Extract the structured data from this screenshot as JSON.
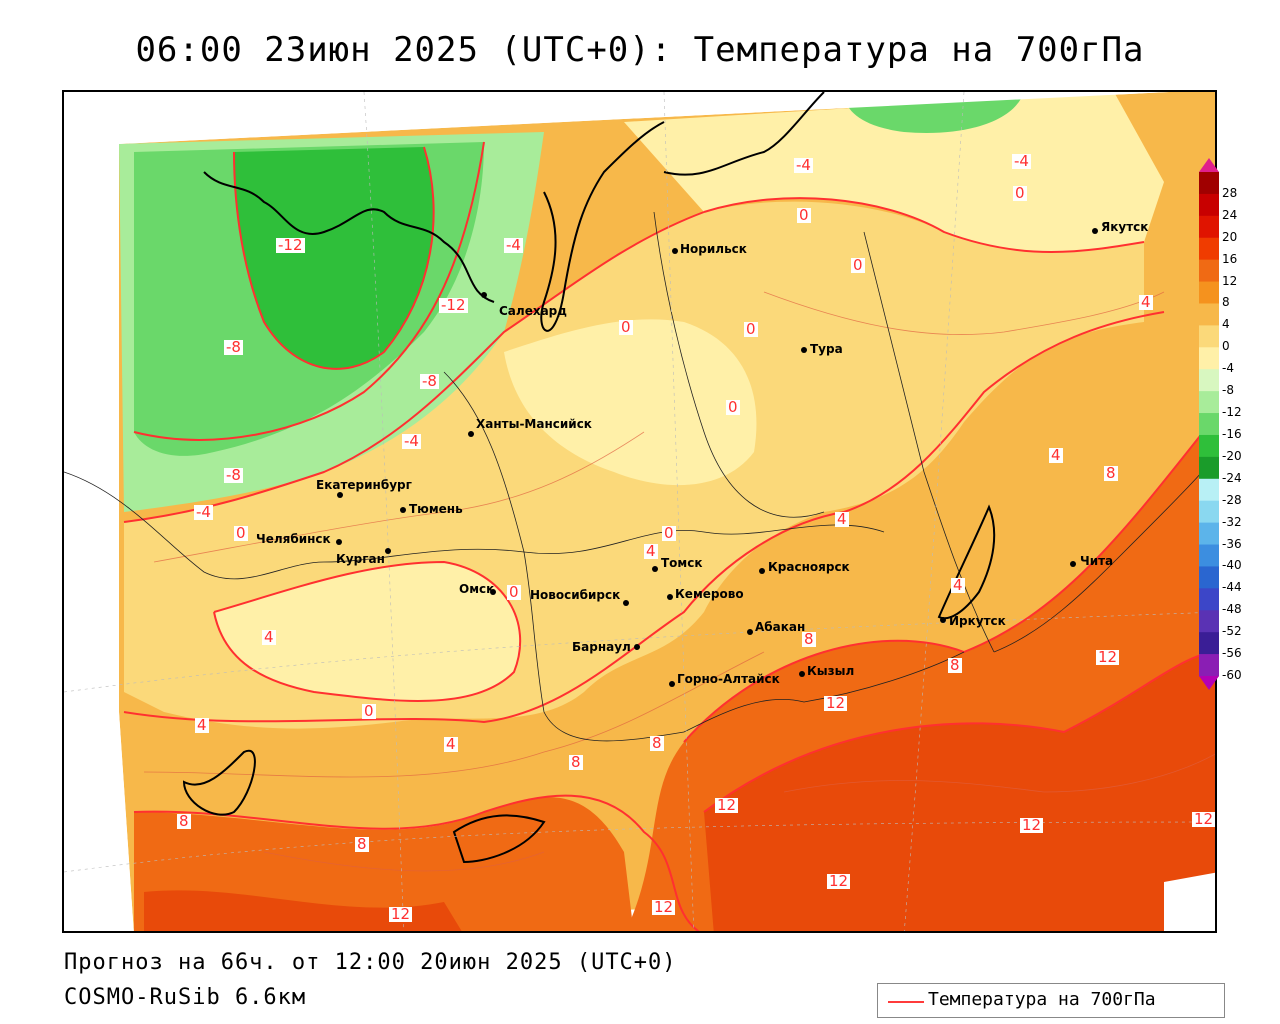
{
  "title": "06:00 23июн 2025 (UTC+0): Температура на 700гПа",
  "footer": {
    "forecast": "Прогноз на 66ч. от 12:00 20июн 2025 (UTC+0)",
    "model": "COSMO-RuSib 6.6км"
  },
  "legend": {
    "label": "Температура на 700гПа",
    "line_color": "#ff3b3b"
  },
  "colorbar": {
    "labels": [
      "28",
      "24",
      "20",
      "16",
      "12",
      "8",
      "4",
      "0",
      "-4",
      "-8",
      "-12",
      "-16",
      "-20",
      "-24",
      "-28",
      "-32",
      "-36",
      "-40",
      "-44",
      "-48",
      "-52",
      "-56",
      "-60"
    ],
    "colors": [
      "#a00000",
      "#c80000",
      "#e01400",
      "#f03c00",
      "#f06a14",
      "#f5921e",
      "#f7b84a",
      "#fbd97a",
      "#fff0a8",
      "#d8f7c0",
      "#a8ec9a",
      "#6ad86a",
      "#2fbf3a",
      "#1a9c2a",
      "#b8f0f5",
      "#8ad8f0",
      "#5cb4ea",
      "#3c8ee0",
      "#2a66d0",
      "#3c46c8",
      "#5a32b4",
      "#3a1e96",
      "#8a1eb4"
    ],
    "top_arrow_color": "#e0208c",
    "bottom_arrow_color": "#b400b4"
  },
  "cities": [
    {
      "name": "Салехард"
    },
    {
      "name": "Норильск"
    },
    {
      "name": "Якутск"
    },
    {
      "name": "Тура"
    },
    {
      "name": "Ханты-Мансийск"
    },
    {
      "name": "Екатеринбург"
    },
    {
      "name": "Тюмень"
    },
    {
      "name": "Челябинск"
    },
    {
      "name": "Курган"
    },
    {
      "name": "Омск"
    },
    {
      "name": "Новосибирск"
    },
    {
      "name": "Томск"
    },
    {
      "name": "Кемерово"
    },
    {
      "name": "Красноярск"
    },
    {
      "name": "Барнаул"
    },
    {
      "name": "Абакан"
    },
    {
      "name": "Иркутск"
    },
    {
      "name": "Чита"
    },
    {
      "name": "Кызыл"
    },
    {
      "name": "Горно-Алтайск"
    }
  ],
  "isoline_labels": [
    "-12",
    "-12",
    "-8",
    "-8",
    "-8",
    "-4",
    "-4",
    "-4",
    "-4",
    "-4",
    "0",
    "0",
    "0",
    "0",
    "0",
    "0",
    "0",
    "0",
    "0",
    "0",
    "4",
    "4",
    "4",
    "4",
    "4",
    "4",
    "4",
    "4",
    "8",
    "8",
    "8",
    "8",
    "8",
    "8",
    "8",
    "12",
    "12",
    "12",
    "12",
    "12",
    "12",
    "12",
    "12"
  ]
}
